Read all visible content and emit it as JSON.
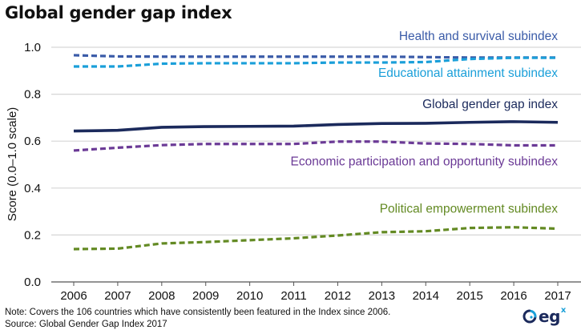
{
  "title": "Global gender gap index",
  "note": "Note: Covers the 106 countries which have consistently been featured in the Index since 2006.",
  "source": "Source: Global Gender Gap Index 2017",
  "logo": {
    "text": "eg",
    "superscript": "x",
    "icon": "egx-logo-icon"
  },
  "chart_data": {
    "type": "line",
    "title": "Global gender gap index",
    "xlabel": "",
    "ylabel": "Score (0.0–1.0 scale)",
    "ylim": [
      0.0,
      1.0
    ],
    "yticks": [
      "0.0",
      "0.2",
      "0.4",
      "0.6",
      "0.8",
      "1.0"
    ],
    "x": [
      "2006",
      "2007",
      "2008",
      "2009",
      "2010",
      "2011",
      "2012",
      "2013",
      "2014",
      "2015",
      "2016",
      "2017"
    ],
    "grid": true,
    "legend": "inline labels, right-aligned above each line",
    "series": [
      {
        "name": "Health and survival subindex",
        "color": "#3a5ba8",
        "dash": true,
        "values": [
          0.966,
          0.961,
          0.96,
          0.96,
          0.96,
          0.96,
          0.96,
          0.96,
          0.958,
          0.956,
          0.956,
          0.956
        ]
      },
      {
        "name": "Educational attainment subindex",
        "color": "#1a9fd9",
        "dash": true,
        "values": [
          0.918,
          0.918,
          0.93,
          0.932,
          0.932,
          0.932,
          0.935,
          0.935,
          0.937,
          0.95,
          0.955,
          0.955
        ]
      },
      {
        "name": "Global gender gap index",
        "color": "#1b2a5c",
        "dash": false,
        "values": [
          0.643,
          0.646,
          0.659,
          0.662,
          0.663,
          0.664,
          0.671,
          0.675,
          0.676,
          0.68,
          0.683,
          0.68
        ]
      },
      {
        "name": "Economic participation and opportunity subindex",
        "color": "#6b3a96",
        "dash": true,
        "values": [
          0.56,
          0.572,
          0.583,
          0.588,
          0.588,
          0.588,
          0.598,
          0.598,
          0.59,
          0.588,
          0.582,
          0.582
        ]
      },
      {
        "name": "Political empowerment subindex",
        "color": "#638a23",
        "dash": true,
        "values": [
          0.14,
          0.142,
          0.164,
          0.17,
          0.178,
          0.186,
          0.198,
          0.212,
          0.216,
          0.23,
          0.233,
          0.227
        ]
      }
    ]
  }
}
